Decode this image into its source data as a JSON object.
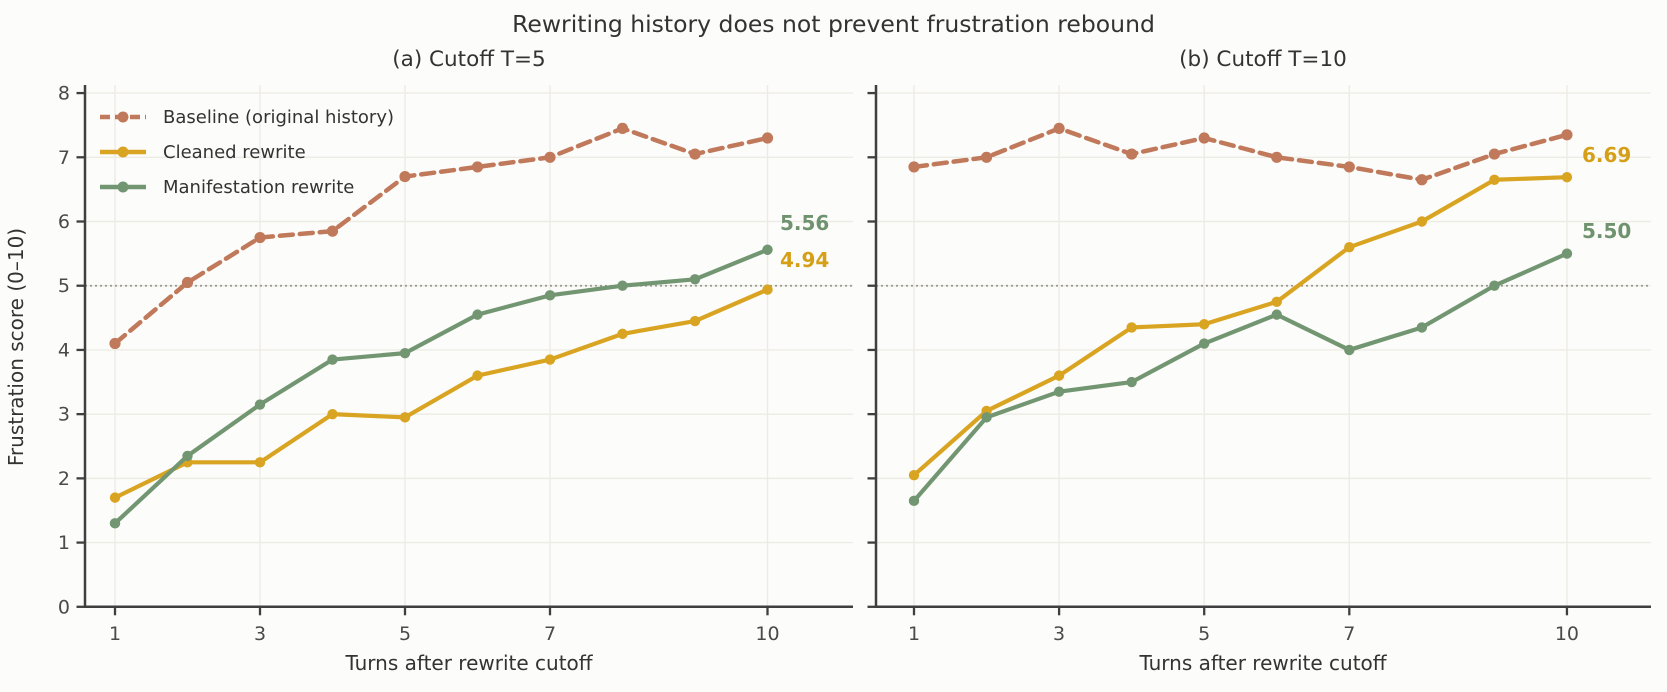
{
  "figure": {
    "title": "Rewriting history does not prevent frustration rebound",
    "y_axis_label": "Frustration score (0–10)",
    "background": "#fcfcfa",
    "grid_color": "#edece4",
    "reference_line_color": "#99978f",
    "axis_color": "#3f3f3f",
    "tick_label_color": "#4a4a4a"
  },
  "legend": {
    "position": "upper-left of panel (a)",
    "items": [
      {
        "label": "Baseline (original history)",
        "color": "#c0795a",
        "dashed": true
      },
      {
        "label": "Cleaned rewrite",
        "color": "#d9a421",
        "dashed": false
      },
      {
        "label": "Manifestation rewrite",
        "color": "#739672",
        "dashed": false
      }
    ]
  },
  "chart_data": [
    {
      "type": "line",
      "title": "(a) Cutoff T=5",
      "xlabel": "Turns after rewrite cutoff",
      "ylabel": "Frustration score (0–10)",
      "x": [
        1,
        2,
        3,
        4,
        5,
        6,
        7,
        8,
        9,
        10
      ],
      "x_ticks": [
        1,
        3,
        5,
        7,
        10
      ],
      "y_ticks": [
        0,
        1,
        2,
        3,
        4,
        5,
        6,
        7,
        8
      ],
      "ylim": [
        0,
        8
      ],
      "grid": true,
      "reference_line_y": 5,
      "series": [
        {
          "name": "Baseline (original history)",
          "color": "#c0795a",
          "dashed": true,
          "values": [
            4.1,
            5.05,
            5.75,
            5.85,
            6.7,
            6.85,
            7.0,
            7.45,
            7.05,
            7.3
          ]
        },
        {
          "name": "Cleaned rewrite",
          "color": "#d9a421",
          "dashed": false,
          "values": [
            1.7,
            2.25,
            2.25,
            3.0,
            2.95,
            3.6,
            3.85,
            4.25,
            4.45,
            4.94
          ],
          "end_label": "4.94"
        },
        {
          "name": "Manifestation rewrite",
          "color": "#739672",
          "dashed": false,
          "values": [
            1.3,
            2.35,
            3.15,
            3.85,
            3.95,
            4.55,
            4.85,
            5.0,
            5.1,
            5.56
          ],
          "end_label": "5.56"
        }
      ]
    },
    {
      "type": "line",
      "title": "(b) Cutoff T=10",
      "xlabel": "Turns after rewrite cutoff",
      "ylabel": "Frustration score (0–10)",
      "x": [
        1,
        2,
        3,
        4,
        5,
        6,
        7,
        8,
        9,
        10
      ],
      "x_ticks": [
        1,
        3,
        5,
        7,
        10
      ],
      "y_ticks": [
        0,
        1,
        2,
        3,
        4,
        5,
        6,
        7,
        8
      ],
      "ylim": [
        0,
        8
      ],
      "grid": true,
      "reference_line_y": 5,
      "series": [
        {
          "name": "Baseline (original history)",
          "color": "#c0795a",
          "dashed": true,
          "values": [
            6.85,
            7.0,
            7.45,
            7.05,
            7.3,
            7.0,
            6.85,
            6.65,
            7.05,
            7.35
          ]
        },
        {
          "name": "Cleaned rewrite",
          "color": "#d9a421",
          "dashed": false,
          "values": [
            2.05,
            3.05,
            3.6,
            4.35,
            4.4,
            4.75,
            5.6,
            6.0,
            6.65,
            6.69
          ],
          "end_label": "6.69"
        },
        {
          "name": "Manifestation rewrite",
          "color": "#739672",
          "dashed": false,
          "values": [
            1.65,
            2.95,
            3.35,
            3.5,
            4.1,
            4.55,
            4.0,
            4.35,
            5.0,
            5.5
          ],
          "end_label": "5.50"
        }
      ]
    }
  ]
}
